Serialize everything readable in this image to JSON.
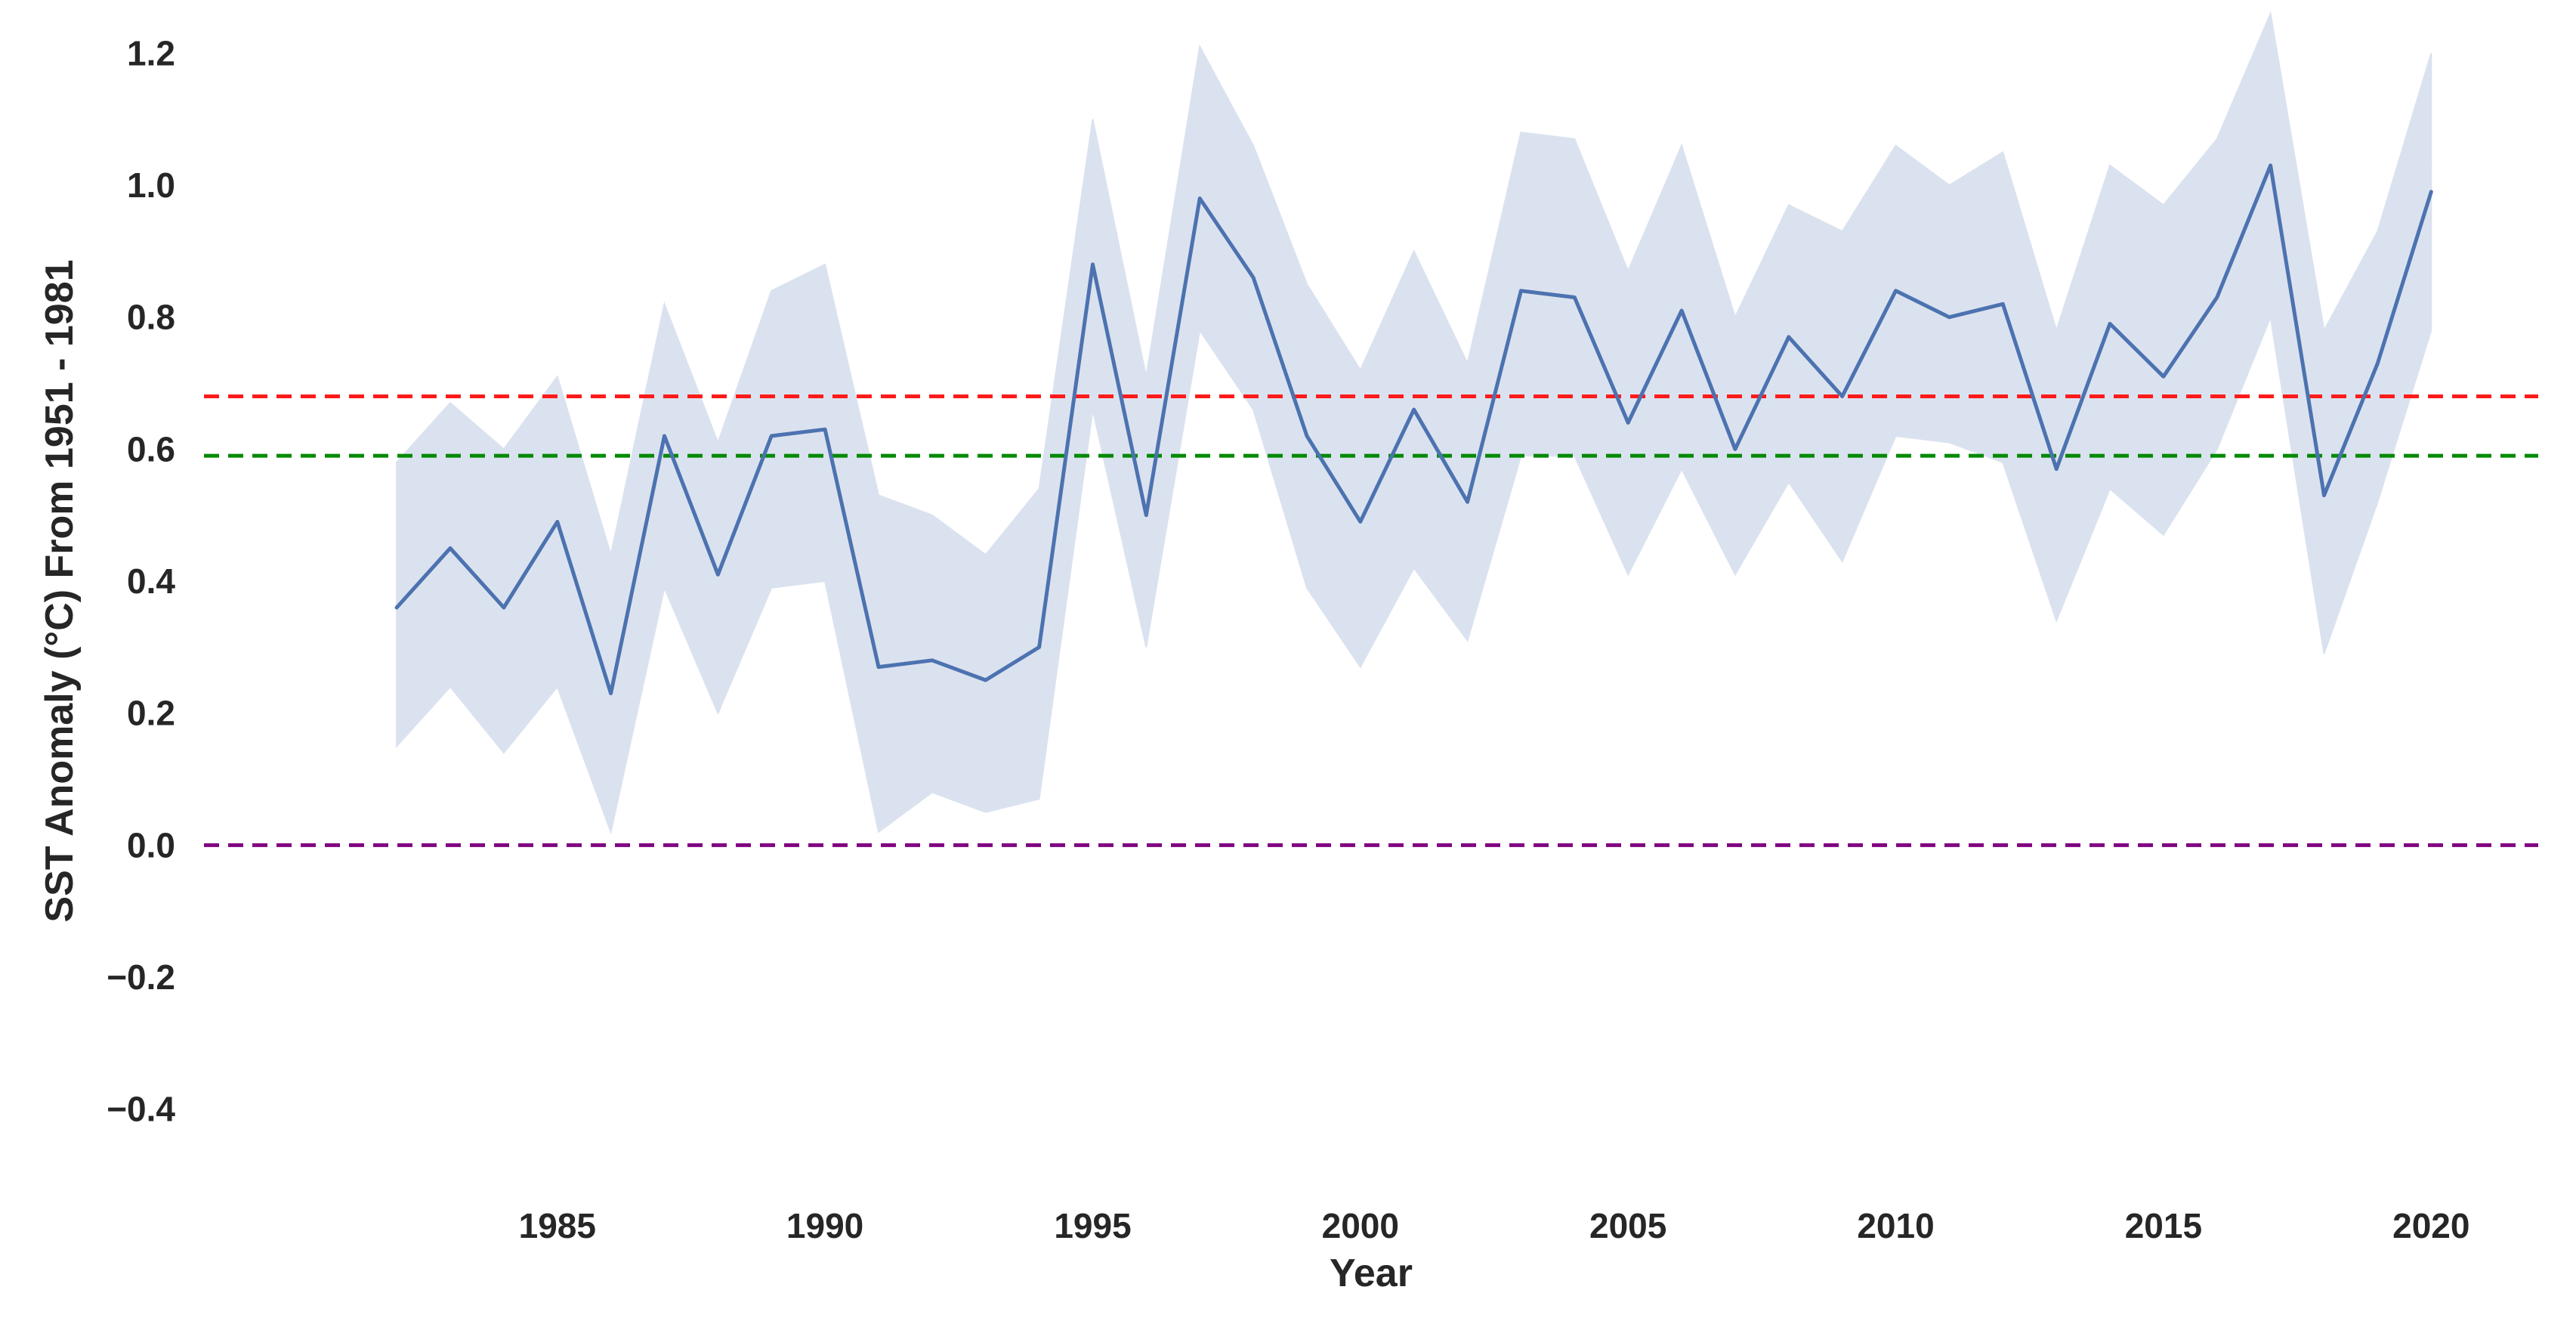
{
  "chart_data": {
    "type": "line",
    "title": "",
    "xlabel": "Year",
    "ylabel": "SST Anomaly (°C) From 1951 - 1981",
    "xlim": [
      1978.4,
      2022
    ],
    "ylim": [
      -0.5,
      1.26
    ],
    "xticks": [
      1985,
      1990,
      1995,
      2000,
      2005,
      2010,
      2015,
      2020
    ],
    "yticks": [
      -0.4,
      -0.2,
      0.0,
      0.2,
      0.4,
      0.6,
      0.8,
      1.0,
      1.2
    ],
    "ytick_labels": [
      "−0.4",
      "−0.2",
      "0.0",
      "0.2",
      "0.4",
      "0.6",
      "0.8",
      "1.0",
      "1.2"
    ],
    "grid": false,
    "legend": null,
    "series": [
      {
        "name": "SST anomaly",
        "color": "#4c72b0",
        "x": [
          1982,
          1983,
          1984,
          1985,
          1986,
          1987,
          1988,
          1989,
          1990,
          1991,
          1992,
          1993,
          1994,
          1995,
          1996,
          1997,
          1998,
          1999,
          2000,
          2001,
          2002,
          2003,
          2004,
          2005,
          2006,
          2007,
          2008,
          2009,
          2010,
          2011,
          2012,
          2013,
          2014,
          2015,
          2016,
          2017,
          2018,
          2019,
          2020
        ],
        "values": [
          0.36,
          0.45,
          0.36,
          0.49,
          0.23,
          0.62,
          0.41,
          0.62,
          0.63,
          0.27,
          0.28,
          0.25,
          0.3,
          0.88,
          0.5,
          0.98,
          0.86,
          0.62,
          0.49,
          0.66,
          0.52,
          0.84,
          0.83,
          0.64,
          0.81,
          0.6,
          0.77,
          0.68,
          0.84,
          0.8,
          0.82,
          0.57,
          0.79,
          0.71,
          0.83,
          1.03,
          0.53,
          0.73,
          0.99
        ],
        "lower": [
          0.15,
          0.24,
          0.14,
          0.24,
          0.02,
          0.39,
          0.2,
          0.39,
          0.4,
          0.02,
          0.08,
          0.05,
          0.07,
          0.66,
          0.3,
          0.78,
          0.66,
          0.39,
          0.27,
          0.42,
          0.31,
          0.59,
          0.59,
          0.41,
          0.57,
          0.41,
          0.55,
          0.43,
          0.62,
          0.61,
          0.58,
          0.34,
          0.54,
          0.47,
          0.6,
          0.8,
          0.29,
          0.52,
          0.78
        ],
        "upper": [
          0.58,
          0.67,
          0.6,
          0.71,
          0.44,
          0.82,
          0.61,
          0.84,
          0.88,
          0.53,
          0.5,
          0.44,
          0.54,
          1.1,
          0.71,
          1.21,
          1.06,
          0.85,
          0.72,
          0.9,
          0.73,
          1.08,
          1.07,
          0.87,
          1.06,
          0.8,
          0.97,
          0.93,
          1.06,
          1.0,
          1.05,
          0.78,
          1.03,
          0.97,
          1.07,
          1.26,
          0.78,
          0.93,
          1.2
        ],
        "band_color": "#dbe2ef"
      }
    ],
    "reference_lines": [
      {
        "name": "red-reference-line",
        "y": 0.68,
        "color": "#ff1a1a",
        "style": "dashed"
      },
      {
        "name": "green-reference-line",
        "y": 0.59,
        "color": "#008a00",
        "style": "dashed"
      },
      {
        "name": "zero-reference-line",
        "y": 0.0,
        "color": "#800080",
        "style": "dashed"
      }
    ]
  }
}
